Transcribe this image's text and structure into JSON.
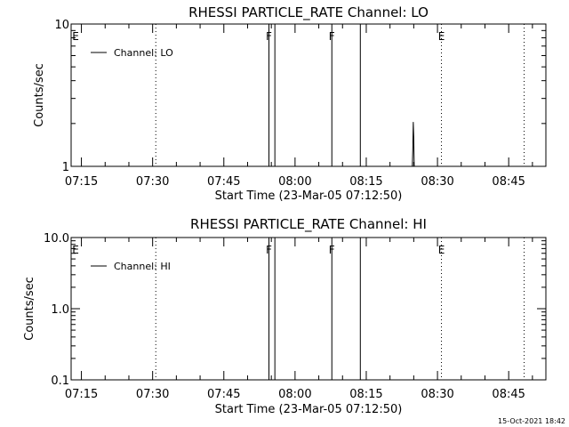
{
  "footer": {
    "timestamp": "15-Oct-2021 18:42"
  },
  "chart_data": [
    {
      "type": "line",
      "title": "RHESSI PARTICLE_RATE Channel: LO",
      "xlabel": "Start Time (23-Mar-05 07:12:50)",
      "ylabel": "Counts/sec",
      "yscale": "log",
      "ylim": [
        1,
        10
      ],
      "yticks": [
        {
          "value": 1,
          "label": "1"
        },
        {
          "value": 10,
          "label": "10"
        }
      ],
      "xlim": [
        "07:12:50",
        "08:52:50"
      ],
      "xticks": [
        "07:15",
        "07:30",
        "07:45",
        "08:00",
        "08:15",
        "08:30",
        "08:45"
      ],
      "legend": {
        "position": "top-left",
        "entries": [
          "Channel: LO"
        ]
      },
      "flags": [
        {
          "label": "E",
          "time": "07:12:50",
          "style": "label"
        },
        {
          "label": "",
          "time": "07:30:40",
          "style": "dotted"
        },
        {
          "label": "F",
          "time": "07:54:30",
          "style": "solid"
        },
        {
          "label": "",
          "time": "07:55:45",
          "style": "solid"
        },
        {
          "label": "F",
          "time": "08:07:45",
          "style": "solid"
        },
        {
          "label": "",
          "time": "08:13:45",
          "style": "solid"
        },
        {
          "label": "E",
          "time": "08:30:50",
          "style": "dotted"
        },
        {
          "label": "",
          "time": "08:48:15",
          "style": "dotted"
        }
      ],
      "series": [
        {
          "name": "Channel: LO",
          "x": [
            "08:24:24",
            "08:24:42",
            "08:24:48",
            "08:24:54",
            "08:25:00",
            "08:25:06",
            "08:25:18"
          ],
          "y": [
            1,
            1,
            1.3,
            2.05,
            1.6,
            1,
            1
          ]
        }
      ]
    },
    {
      "type": "line",
      "title": "RHESSI PARTICLE_RATE Channel: HI",
      "xlabel": "Start Time (23-Mar-05 07:12:50)",
      "ylabel": "Counts/sec",
      "yscale": "log",
      "ylim": [
        0.1,
        10
      ],
      "yticks": [
        {
          "value": 0.1,
          "label": "0.1"
        },
        {
          "value": 1,
          "label": "1.0"
        },
        {
          "value": 10,
          "label": "10.0"
        }
      ],
      "xlim": [
        "07:12:50",
        "08:52:50"
      ],
      "xticks": [
        "07:15",
        "07:30",
        "07:45",
        "08:00",
        "08:15",
        "08:30",
        "08:45"
      ],
      "legend": {
        "position": "top-left",
        "entries": [
          "Channel: HI"
        ]
      },
      "flags": [
        {
          "label": "E",
          "time": "07:12:50",
          "style": "label"
        },
        {
          "label": "",
          "time": "07:30:40",
          "style": "dotted"
        },
        {
          "label": "F",
          "time": "07:54:30",
          "style": "solid"
        },
        {
          "label": "",
          "time": "07:55:45",
          "style": "solid"
        },
        {
          "label": "F",
          "time": "08:07:45",
          "style": "solid"
        },
        {
          "label": "",
          "time": "08:13:45",
          "style": "solid"
        },
        {
          "label": "E",
          "time": "08:30:50",
          "style": "dotted"
        },
        {
          "label": "",
          "time": "08:48:15",
          "style": "dotted"
        }
      ],
      "series": [
        {
          "name": "Channel: HI",
          "x": [],
          "y": []
        }
      ]
    }
  ]
}
